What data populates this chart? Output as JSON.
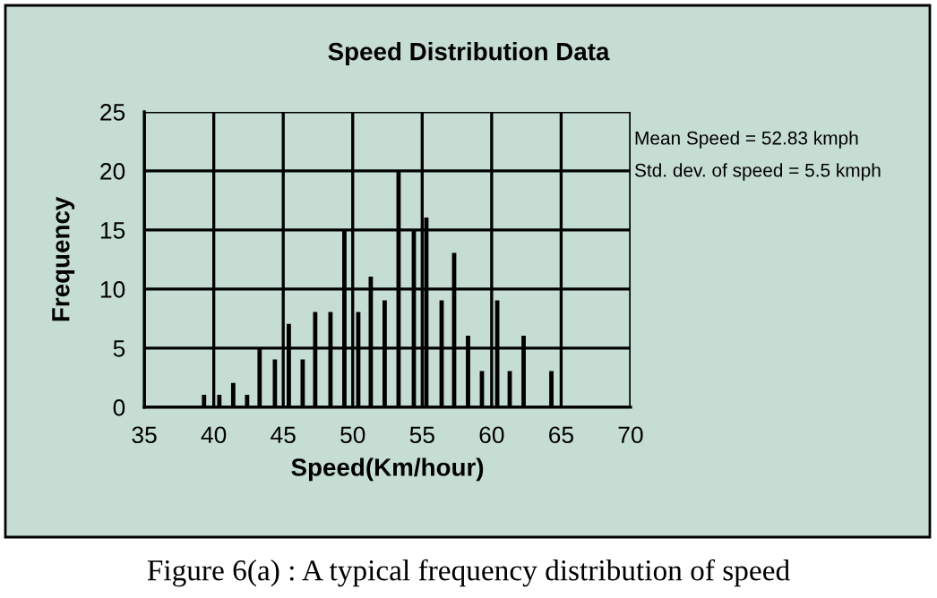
{
  "chart_data": {
    "type": "bar",
    "title": "Speed Distribution Data",
    "xlabel": "Speed(Km/hour)",
    "ylabel": "Frequency",
    "x": [
      39.3,
      40.4,
      41.4,
      42.4,
      43.3,
      44.4,
      45.4,
      46.4,
      47.3,
      48.4,
      49.4,
      50.4,
      51.3,
      52.3,
      53.3,
      54.4,
      55.3,
      56.4,
      57.3,
      58.3,
      59.3,
      60.4,
      61.3,
      62.3,
      64.3
    ],
    "values": [
      1,
      1,
      2,
      1,
      5,
      4,
      7,
      4,
      8,
      8,
      15,
      8,
      11,
      9,
      20,
      15,
      16,
      9,
      13,
      6,
      3,
      9,
      3,
      6,
      3
    ],
    "color": "#000000",
    "xlim": [
      35,
      70
    ],
    "xticks": [
      35,
      40,
      45,
      50,
      55,
      60,
      65,
      70
    ],
    "ylim": [
      0,
      25
    ],
    "yticks": [
      0,
      5,
      10,
      15,
      20,
      25
    ],
    "grid": true,
    "annotations": [
      "Mean Speed = 52.83 kmph",
      "Std. dev. of speed = 5.5 kmph",
      "Figure 6(a) : A typical frequency distribution of speed"
    ]
  }
}
